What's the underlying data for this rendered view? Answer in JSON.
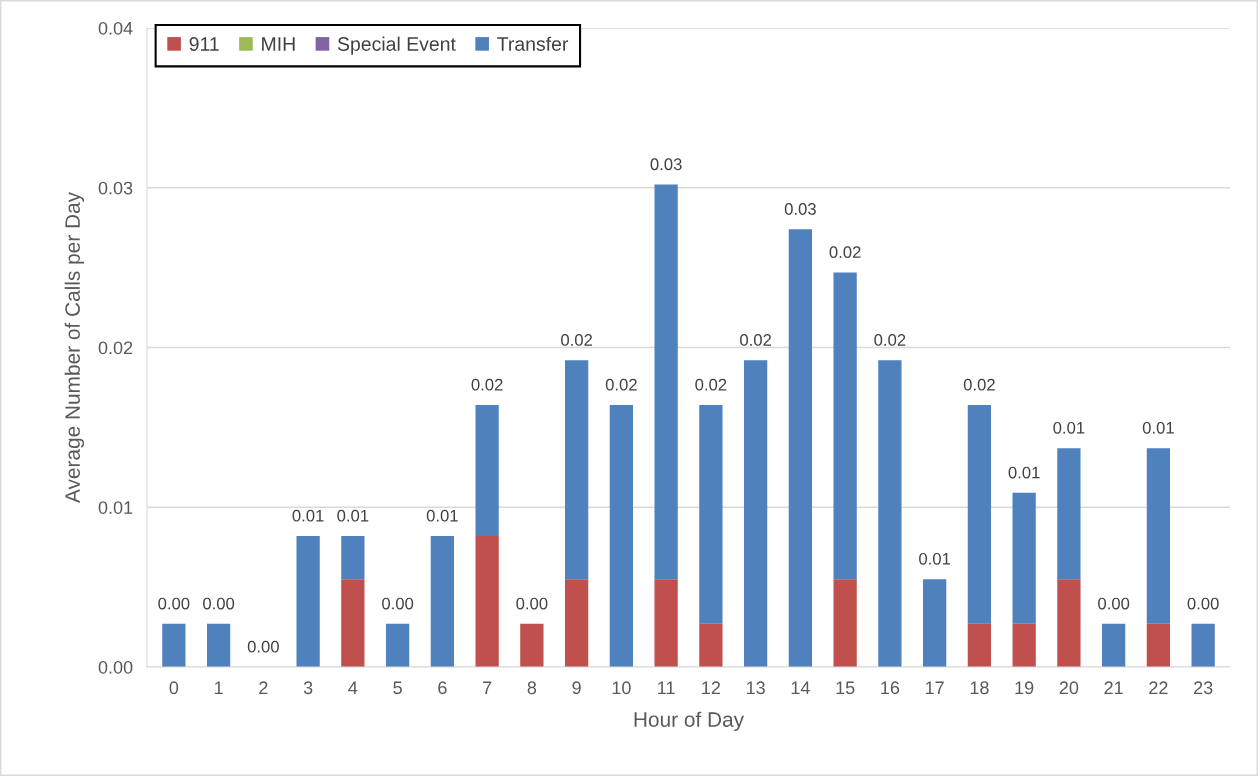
{
  "chart_data": {
    "type": "bar",
    "stacked": true,
    "xlabel": "Hour of Day",
    "ylabel": "Average Number of Calls per Day",
    "categories": [
      "0",
      "1",
      "2",
      "3",
      "4",
      "5",
      "6",
      "7",
      "8",
      "9",
      "10",
      "11",
      "12",
      "13",
      "14",
      "15",
      "16",
      "17",
      "18",
      "19",
      "20",
      "21",
      "22",
      "23"
    ],
    "series": [
      {
        "name": "911",
        "color": "#c0504d",
        "values": [
          0,
          0,
          0,
          0,
          0.0055,
          0,
          0,
          0.0082,
          0.0027,
          0.0055,
          0,
          0.0055,
          0.0027,
          0,
          0,
          0.0055,
          0,
          0,
          0.0027,
          0.0027,
          0.0055,
          0,
          0.0027,
          0
        ]
      },
      {
        "name": "MIH",
        "color": "#9bbb59",
        "values": [
          0,
          0,
          0,
          0,
          0,
          0,
          0,
          0,
          0,
          0,
          0,
          0,
          0,
          0,
          0,
          0,
          0,
          0,
          0,
          0,
          0,
          0,
          0,
          0
        ]
      },
      {
        "name": "Special Event",
        "color": "#8064a2",
        "values": [
          0,
          0,
          0,
          0,
          0,
          0,
          0,
          0,
          0,
          0,
          0,
          0,
          0,
          0,
          0,
          0,
          0,
          0,
          0,
          0,
          0,
          0,
          0,
          0
        ]
      },
      {
        "name": "Transfer",
        "color": "#4f81bd",
        "values": [
          0.0027,
          0.0027,
          0,
          0.0082,
          0.0027,
          0.0027,
          0.0082,
          0.0082,
          0,
          0.0137,
          0.0164,
          0.0247,
          0.0137,
          0.0192,
          0.0274,
          0.0192,
          0.0192,
          0.0055,
          0.0137,
          0.0082,
          0.0082,
          0.0027,
          0.011,
          0.0027
        ]
      }
    ],
    "totals": [
      "0.00",
      "0.00",
      "0.00",
      "0.01",
      "0.01",
      "0.00",
      "0.01",
      "0.02",
      "0.00",
      "0.02",
      "0.02",
      "0.03",
      "0.02",
      "0.02",
      "0.03",
      "0.02",
      "0.02",
      "0.01",
      "0.02",
      "0.01",
      "0.01",
      "0.00",
      "0.01",
      "0.00"
    ],
    "ylim": [
      0,
      0.04
    ],
    "yticks": [
      {
        "value": 0,
        "label": "0.00"
      },
      {
        "value": 0.01,
        "label": "0.01"
      },
      {
        "value": 0.02,
        "label": "0.02"
      },
      {
        "value": 0.03,
        "label": "0.03"
      },
      {
        "value": 0.04,
        "label": "0.04"
      }
    ],
    "grid": "y",
    "legend": "top left"
  }
}
